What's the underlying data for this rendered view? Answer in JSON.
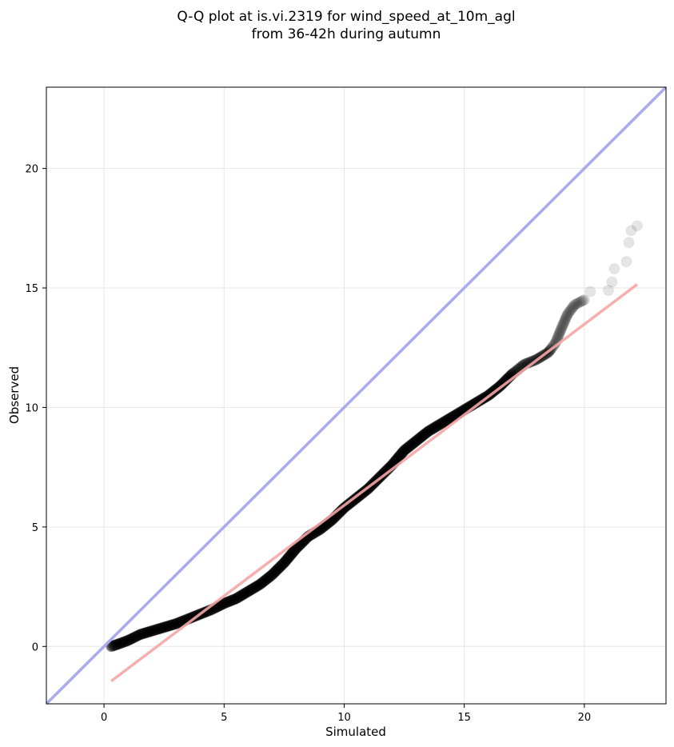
{
  "chart_data": {
    "type": "scatter",
    "title": "Q-Q plot at is.vi.2319 for wind_speed_at_10m_agl",
    "subtitle": "from 36-42h during autumn",
    "xlabel": "Simulated",
    "ylabel": "Observed",
    "xlim": [
      -2.4,
      23.4
    ],
    "ylim": [
      -2.4,
      23.4
    ],
    "xticks": [
      0,
      5,
      10,
      15,
      20
    ],
    "yticks": [
      0,
      5,
      10,
      15,
      20
    ],
    "xtick_labels": [
      "0",
      "5",
      "10",
      "15",
      "20"
    ],
    "ytick_labels": [
      "0",
      "5",
      "10",
      "15",
      "20"
    ],
    "grid": true,
    "point_color": "#000000",
    "identity_line_color": "#aaaaee",
    "fit_line_color": "#f4a6a6",
    "quantile_curve": [
      [
        0.3,
        0.0
      ],
      [
        0.6,
        0.1
      ],
      [
        1.0,
        0.25
      ],
      [
        1.5,
        0.5
      ],
      [
        2.0,
        0.65
      ],
      [
        2.5,
        0.8
      ],
      [
        3.0,
        0.95
      ],
      [
        3.5,
        1.15
      ],
      [
        4.0,
        1.35
      ],
      [
        4.5,
        1.55
      ],
      [
        5.0,
        1.8
      ],
      [
        5.5,
        2.0
      ],
      [
        6.0,
        2.3
      ],
      [
        6.5,
        2.6
      ],
      [
        7.0,
        3.0
      ],
      [
        7.5,
        3.5
      ],
      [
        8.0,
        4.1
      ],
      [
        8.5,
        4.6
      ],
      [
        9.0,
        4.9
      ],
      [
        9.5,
        5.3
      ],
      [
        10.0,
        5.8
      ],
      [
        10.5,
        6.2
      ],
      [
        11.0,
        6.6
      ],
      [
        11.5,
        7.1
      ],
      [
        12.0,
        7.6
      ],
      [
        12.5,
        8.2
      ],
      [
        13.0,
        8.6
      ],
      [
        13.5,
        9.0
      ],
      [
        14.0,
        9.3
      ],
      [
        14.5,
        9.6
      ],
      [
        15.0,
        9.9
      ],
      [
        15.5,
        10.2
      ],
      [
        16.0,
        10.5
      ],
      [
        16.5,
        10.9
      ],
      [
        17.0,
        11.4
      ],
      [
        17.5,
        11.8
      ],
      [
        18.0,
        12.0
      ],
      [
        18.5,
        12.3
      ],
      [
        18.8,
        12.7
      ],
      [
        19.0,
        13.2
      ],
      [
        19.3,
        13.9
      ],
      [
        19.6,
        14.3
      ],
      [
        20.0,
        14.5
      ]
    ],
    "tail_points": [
      [
        20.25,
        14.85
      ],
      [
        21.0,
        14.9
      ],
      [
        21.15,
        15.25
      ],
      [
        21.25,
        15.8
      ],
      [
        21.75,
        16.1
      ],
      [
        21.85,
        16.9
      ],
      [
        21.95,
        17.4
      ],
      [
        22.2,
        17.6
      ]
    ],
    "identity_line": [
      [
        -2.4,
        -2.4
      ],
      [
        23.4,
        23.4
      ]
    ],
    "fit_line": [
      [
        0.3,
        -1.45
      ],
      [
        22.2,
        15.15
      ]
    ]
  }
}
